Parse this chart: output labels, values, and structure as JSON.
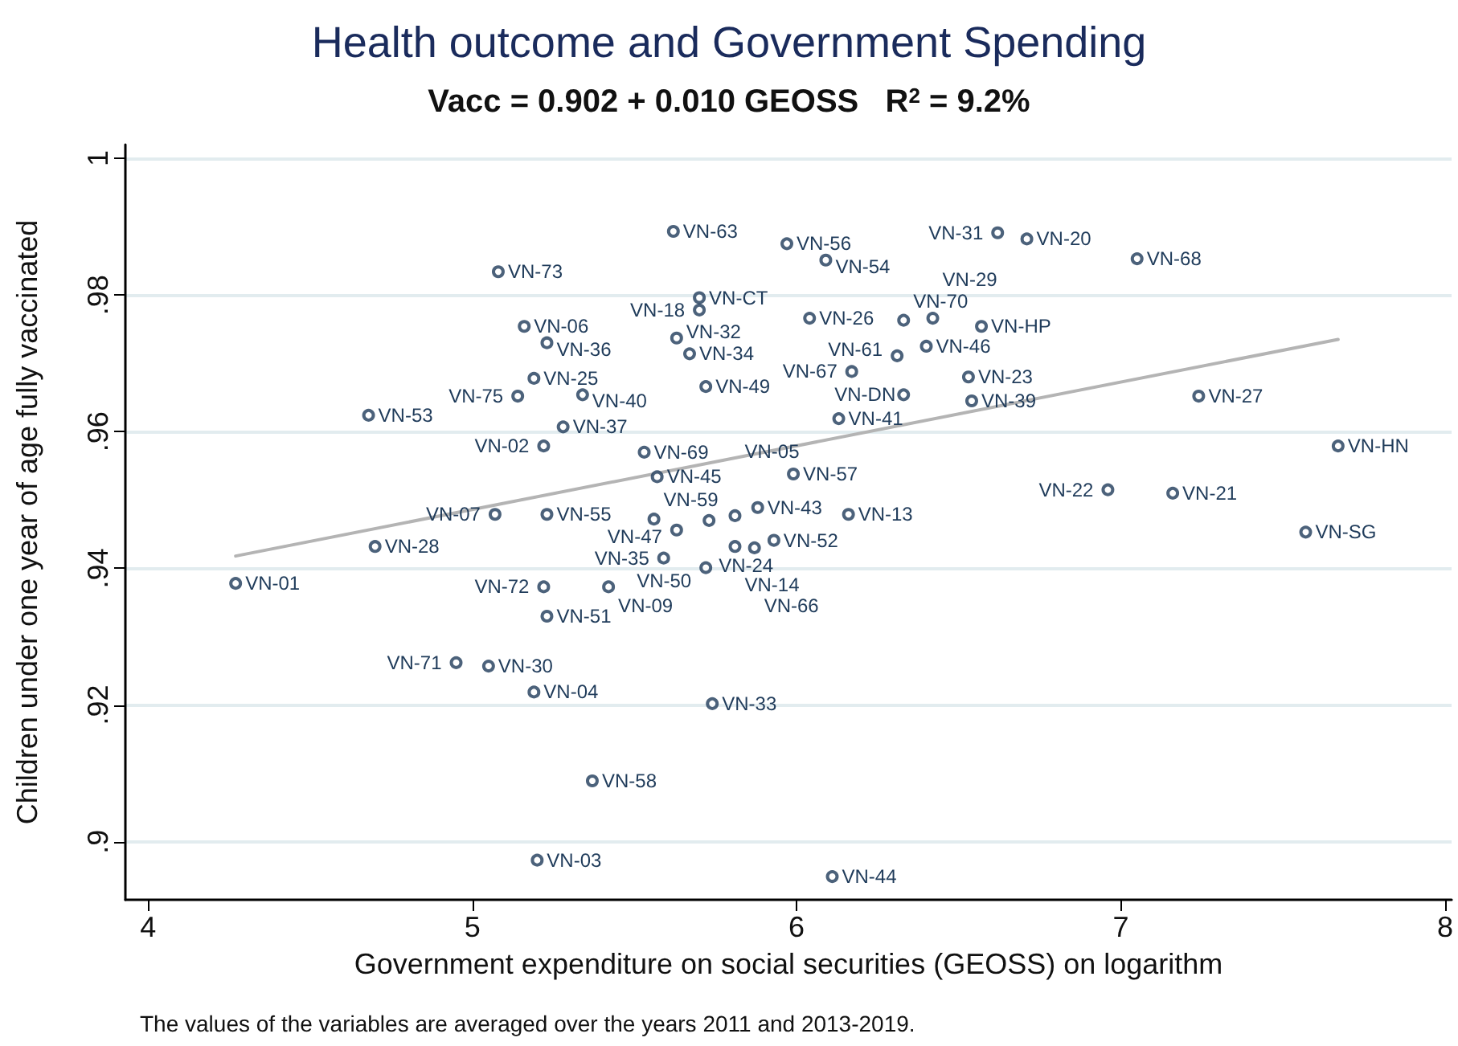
{
  "chart_data": {
    "type": "scatter",
    "title": "Health outcome and Government Spending",
    "subtitle": "Vacc = 0.902 + 0.010 GEOSS   R$^{2}$ = 9.2%",
    "xlabel": "Government expenditure on social securities (GEOSS) on logarithm",
    "ylabel": "Children under one year of age fully vaccinated",
    "xlim": [
      3.93,
      8.02
    ],
    "xticks": [
      4,
      5,
      6,
      7,
      8
    ],
    "ylim": [
      0.8915,
      1.002
    ],
    "yticks": [
      {
        "value": 0.9,
        "label": ".9"
      },
      {
        "value": 0.92,
        "label": ".92"
      },
      {
        "value": 0.94,
        "label": ".94"
      },
      {
        "value": 0.96,
        "label": ".96"
      },
      {
        "value": 0.98,
        "label": ".98"
      },
      {
        "value": 1,
        "label": "1"
      }
    ],
    "grid": "y",
    "marker": "circle",
    "series": [
      {
        "color": "#1f3b5a",
        "x": [
          4.27,
          4.7,
          4.68,
          5.08,
          5.16,
          5.23,
          5.19,
          5.14,
          5.34,
          5.28,
          5.22,
          5.53,
          5.57,
          5.99,
          5.88,
          6.16,
          5.07,
          5.23,
          5.56,
          5.62,
          5.97,
          6.09,
          5.7,
          5.7,
          6.04,
          5.63,
          5.67,
          5.72,
          6.17,
          6.13,
          6.31,
          6.33,
          6.4,
          6.53,
          6.54,
          6.33,
          6.42,
          6.57,
          6.62,
          6.71,
          7.05,
          7.24,
          7.67,
          6.96,
          7.16,
          7.57,
          5.73,
          5.81,
          5.63,
          5.81,
          5.59,
          5.72,
          5.93,
          5.87,
          5.22,
          5.42,
          5.23,
          4.95,
          5.05,
          5.19,
          5.74,
          5.37,
          5.2,
          6.11
        ],
        "values": [
          0.9378,
          0.9432,
          0.9624,
          0.9834,
          0.9754,
          0.973,
          0.9678,
          0.9652,
          0.9654,
          0.9607,
          0.9579,
          0.957,
          0.9534,
          0.9538,
          0.9489,
          0.9479,
          0.9479,
          0.9479,
          0.9472,
          0.9893,
          0.9875,
          0.9851,
          0.9796,
          0.9778,
          0.9766,
          0.9737,
          0.9714,
          0.9666,
          0.9688,
          0.9619,
          0.9711,
          0.9654,
          0.9725,
          0.968,
          0.9645,
          0.9763,
          0.9766,
          0.9754,
          0.9891,
          0.9882,
          0.9853,
          0.9652,
          0.9579,
          0.9515,
          0.951,
          0.9453,
          0.947,
          0.9477,
          0.9456,
          0.9432,
          0.9415,
          0.9401,
          0.9441,
          0.943,
          0.9373,
          0.9373,
          0.933,
          0.9262,
          0.9257,
          0.9219,
          0.9202,
          0.9089,
          0.8973,
          0.8949
        ]
      },
      {
        "type": "line",
        "marker": "none",
        "color": "#b4b4b4",
        "x": [
          4.27,
          7.67
        ],
        "values": [
          0.9418,
          0.9735
        ]
      }
    ],
    "annotations": [
      {
        "text": "VN-01",
        "x": 4.27,
        "y": 0.9378
      },
      {
        "text": "VN-28",
        "x": 4.7,
        "y": 0.9432
      },
      {
        "text": "VN-53",
        "x": 4.68,
        "y": 0.9624
      },
      {
        "text": "VN-73",
        "x": 5.08,
        "y": 0.9834
      },
      {
        "text": "VN-06",
        "x": 5.16,
        "y": 0.9754
      },
      {
        "text": "VN-36",
        "x": 5.23,
        "y": 0.973
      },
      {
        "text": "VN-25",
        "x": 5.19,
        "y": 0.9678
      },
      {
        "text": "VN-75",
        "x": 5.14,
        "y": 0.9652
      },
      {
        "text": "VN-40",
        "x": 5.34,
        "y": 0.9654
      },
      {
        "text": "VN-37",
        "x": 5.28,
        "y": 0.9607
      },
      {
        "text": "VN-02",
        "x": 5.22,
        "y": 0.9579
      },
      {
        "text": "VN-69",
        "x": 5.53,
        "y": 0.957
      },
      {
        "text": "VN-45",
        "x": 5.57,
        "y": 0.9534
      },
      {
        "text": "VN-57",
        "x": 5.99,
        "y": 0.9538
      },
      {
        "text": "VN-43",
        "x": 5.88,
        "y": 0.9489
      },
      {
        "text": "VN-13",
        "x": 6.16,
        "y": 0.9479
      },
      {
        "text": "VN-07",
        "x": 5.07,
        "y": 0.9479
      },
      {
        "text": "VN-55",
        "x": 5.23,
        "y": 0.9479
      },
      {
        "text": "VN-59",
        "x": 5.56,
        "y": 0.9472
      },
      {
        "text": "VN-63",
        "x": 5.62,
        "y": 0.9893
      },
      {
        "text": "VN-56",
        "x": 5.97,
        "y": 0.9875
      },
      {
        "text": "VN-54",
        "x": 6.09,
        "y": 0.9851
      },
      {
        "text": "VN-CT",
        "x": 5.7,
        "y": 0.9796
      },
      {
        "text": "VN-18",
        "x": 5.7,
        "y": 0.9778
      },
      {
        "text": "VN-26",
        "x": 6.04,
        "y": 0.9766
      },
      {
        "text": "VN-32",
        "x": 5.63,
        "y": 0.9737
      },
      {
        "text": "VN-34",
        "x": 5.67,
        "y": 0.9714
      },
      {
        "text": "VN-49",
        "x": 5.72,
        "y": 0.9666
      },
      {
        "text": "VN-67",
        "x": 6.17,
        "y": 0.9688
      },
      {
        "text": "VN-41",
        "x": 6.13,
        "y": 0.9619
      },
      {
        "text": "VN-61",
        "x": 6.31,
        "y": 0.9711
      },
      {
        "text": "VN-DN",
        "x": 6.33,
        "y": 0.9654
      },
      {
        "text": "VN-46",
        "x": 6.4,
        "y": 0.9725
      },
      {
        "text": "VN-23",
        "x": 6.53,
        "y": 0.968
      },
      {
        "text": "VN-39",
        "x": 6.54,
        "y": 0.9645
      },
      {
        "text": "VN-70",
        "x": 6.33,
        "y": 0.9763
      },
      {
        "text": "VN-29",
        "x": 6.42,
        "y": 0.9766
      },
      {
        "text": "VN-HP",
        "x": 6.57,
        "y": 0.9754
      },
      {
        "text": "VN-31",
        "x": 6.62,
        "y": 0.9891
      },
      {
        "text": "VN-20",
        "x": 6.71,
        "y": 0.9882
      },
      {
        "text": "VN-68",
        "x": 7.05,
        "y": 0.9853
      },
      {
        "text": "VN-27",
        "x": 7.24,
        "y": 0.9652
      },
      {
        "text": "VN-HN",
        "x": 7.67,
        "y": 0.9579
      },
      {
        "text": "VN-22",
        "x": 6.96,
        "y": 0.9515
      },
      {
        "text": "VN-21",
        "x": 7.16,
        "y": 0.951
      },
      {
        "text": "VN-SG",
        "x": 7.57,
        "y": 0.9453
      },
      {
        "text": "VN-24",
        "x": 5.73,
        "y": 0.947
      },
      {
        "text": "VN-05",
        "x": 5.81,
        "y": 0.9477
      },
      {
        "text": "VN-47",
        "x": 5.63,
        "y": 0.9456
      },
      {
        "text": "VN-14",
        "x": 5.81,
        "y": 0.9432
      },
      {
        "text": "VN-35",
        "x": 5.59,
        "y": 0.9415
      },
      {
        "text": "VN-50",
        "x": 5.72,
        "y": 0.9401
      },
      {
        "text": "VN-52",
        "x": 5.93,
        "y": 0.9441
      },
      {
        "text": "VN-66",
        "x": 5.87,
        "y": 0.943
      },
      {
        "text": "VN-72",
        "x": 5.22,
        "y": 0.9373
      },
      {
        "text": "VN-09",
        "x": 5.42,
        "y": 0.9373
      },
      {
        "text": "VN-51",
        "x": 5.23,
        "y": 0.933
      },
      {
        "text": "VN-71",
        "x": 4.95,
        "y": 0.9262
      },
      {
        "text": "VN-30",
        "x": 5.05,
        "y": 0.9257
      },
      {
        "text": "VN-04",
        "x": 5.19,
        "y": 0.9219
      },
      {
        "text": "VN-33",
        "x": 5.74,
        "y": 0.9202
      },
      {
        "text": "VN-58",
        "x": 5.37,
        "y": 0.9089
      },
      {
        "text": "VN-03",
        "x": 5.2,
        "y": 0.8973
      },
      {
        "text": "VN-44",
        "x": 6.11,
        "y": 0.8949
      },
      "The values of the variables are averaged over the years 2011 and 2013-2019."
    ]
  }
}
